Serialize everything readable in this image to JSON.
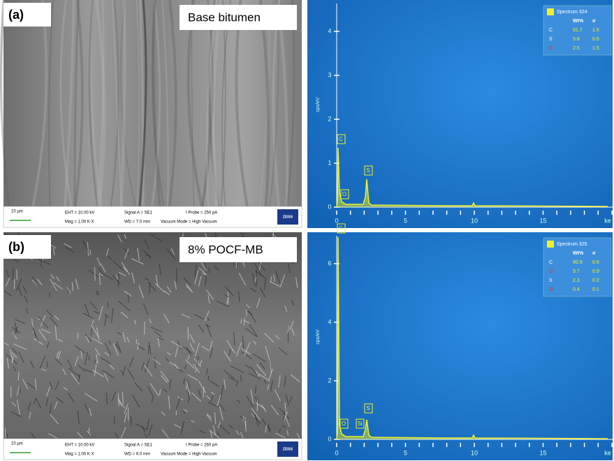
{
  "panels": [
    {
      "label": "(a)",
      "caption": "Base bitumen",
      "sem_info": {
        "scale": "10 µm",
        "eht": "EHT = 10.00 kV",
        "mag": "Mag = 1.00 K X",
        "signal": "Signal A = SE1",
        "wd": "WD = 7.0 mm",
        "probe": "I Probe = 250 pA",
        "vacuum": "Vacuum Mode = High Vacuum",
        "brand": "ZEISS"
      },
      "spectrum": {
        "axis_label": "cps/eV",
        "x_ticks": [
          "0",
          "5",
          "10",
          "15",
          "ke"
        ],
        "y_ticks": [
          "0",
          "1",
          "2",
          "3",
          "4"
        ],
        "peaks": [
          "C",
          "O",
          "S"
        ],
        "table": {
          "title": "Spectrum 324",
          "header": [
            "Wt%",
            "σ"
          ],
          "rows": [
            [
              "C",
              "91.7",
              "1.5"
            ],
            [
              "S",
              "5.8",
              "0.5"
            ],
            [
              "O",
              "2.5",
              "1.5"
            ]
          ]
        }
      }
    },
    {
      "label": "(b)",
      "caption": "8% POCF-MB",
      "sem_info": {
        "scale": "10 µm",
        "eht": "EHT = 10.00 kV",
        "mag": "Mag = 1.00 K X",
        "signal": "Signal A = SE1",
        "wd": "WD = 6.0 mm",
        "probe": "I Probe = 260 pA",
        "vacuum": "Vacuum Mode = High Vacuum",
        "brand": "ZEISS"
      },
      "spectrum": {
        "axis_label": "cps/eV",
        "x_ticks": [
          "0",
          "5",
          "10",
          "15",
          "ke"
        ],
        "y_ticks": [
          "0",
          "2",
          "4",
          "6"
        ],
        "peaks": [
          "C",
          "O",
          "Si",
          "S"
        ],
        "table": {
          "title": "Spectrum 325",
          "header": [
            "Wt%",
            "σ"
          ],
          "rows": [
            [
              "C",
              "90.9",
              "0.9"
            ],
            [
              "O",
              "5.7",
              "0.9"
            ],
            [
              "S",
              "2.3",
              "0.2"
            ],
            [
              "Si",
              "0.4",
              "0.1"
            ]
          ]
        }
      }
    }
  ]
}
